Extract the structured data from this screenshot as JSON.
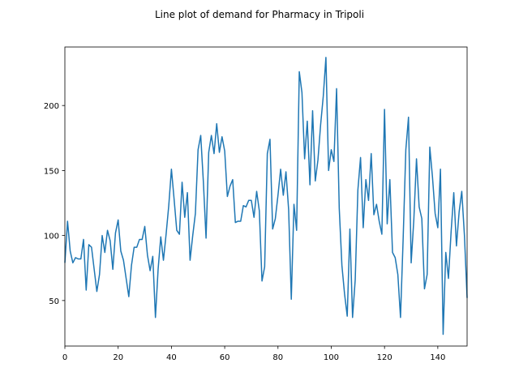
{
  "chart_data": {
    "type": "line",
    "title": "Line plot of demand for Pharmacy in Tripoli",
    "xlabel": "",
    "ylabel": "",
    "xlim": [
      0,
      151
    ],
    "ylim": [
      15,
      245
    ],
    "x_ticks": [
      0,
      20,
      40,
      60,
      80,
      100,
      120,
      140
    ],
    "y_ticks": [
      50,
      100,
      150,
      200
    ],
    "grid": false,
    "legend": "none",
    "line_color": "#1f77b4",
    "series": [
      {
        "x": [
          0,
          1,
          2,
          3,
          4,
          5,
          6,
          7,
          8,
          9,
          10,
          11,
          12,
          13,
          14,
          15,
          16,
          17,
          18,
          19,
          20,
          21,
          22,
          23,
          24,
          25,
          26,
          27,
          28,
          29,
          30,
          31,
          32,
          33,
          34,
          35,
          36,
          37,
          38,
          39,
          40,
          41,
          42,
          43,
          44,
          45,
          46,
          47,
          48,
          49,
          50,
          51,
          52,
          53,
          54,
          55,
          56,
          57,
          58,
          59,
          60,
          61,
          62,
          63,
          64,
          65,
          66,
          67,
          68,
          69,
          70,
          71,
          72,
          73,
          74,
          75,
          76,
          77,
          78,
          79,
          80,
          81,
          82,
          83,
          84,
          85,
          86,
          87,
          88,
          89,
          90,
          91,
          92,
          93,
          94,
          95,
          96,
          97,
          98,
          99,
          100,
          101,
          102,
          103,
          104,
          105,
          106,
          107,
          108,
          109,
          110,
          111,
          112,
          113,
          114,
          115,
          116,
          117,
          118,
          119,
          120,
          121,
          122,
          123,
          124,
          125,
          126,
          127,
          128,
          129,
          130,
          131,
          132,
          133,
          134,
          135,
          136,
          137,
          138,
          139,
          140,
          141,
          142,
          143,
          144,
          145,
          146,
          147,
          148,
          149,
          150,
          151
        ],
        "values": [
          79,
          111,
          88,
          79,
          83,
          82,
          82,
          97,
          58,
          93,
          91,
          74,
          57,
          70,
          100,
          87,
          104,
          96,
          74,
          102,
          112,
          88,
          81,
          67,
          53,
          77,
          91,
          91,
          97,
          97,
          107,
          85,
          73,
          84,
          37,
          74,
          99,
          81,
          101,
          123,
          151,
          128,
          104,
          101,
          141,
          114,
          133,
          81,
          100,
          117,
          166,
          177,
          141,
          98,
          164,
          177,
          163,
          186,
          164,
          176,
          165,
          130,
          138,
          143,
          110,
          111,
          111,
          123,
          122,
          127,
          127,
          114,
          134,
          119,
          65,
          76,
          163,
          174,
          105,
          113,
          131,
          151,
          131,
          149,
          120,
          51,
          124,
          104,
          226,
          210,
          159,
          188,
          139,
          196,
          142,
          158,
          185,
          207,
          237,
          150,
          166,
          157,
          213,
          121,
          77,
          55,
          38,
          105,
          37,
          66,
          135,
          160,
          106,
          143,
          127,
          163,
          116,
          124,
          111,
          101,
          197,
          109,
          143,
          87,
          83,
          70,
          37,
          98,
          166,
          191,
          79,
          112,
          159,
          122,
          113,
          59,
          70,
          168,
          145,
          117,
          106,
          151,
          24,
          87,
          67,
          103,
          133,
          92,
          118,
          134,
          100,
          52
        ]
      }
    ]
  }
}
